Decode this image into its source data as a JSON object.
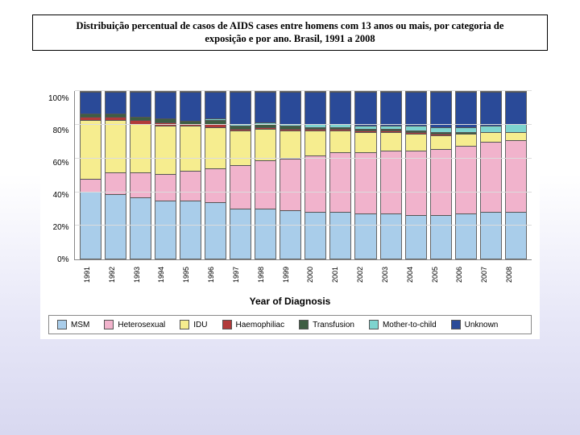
{
  "title": {
    "line1": "Distribuição percentual de casos de AIDS cases entre homens com 13 anos ou mais, por categoria de",
    "line2": "exposição e por ano. Brasil, 1991 a 2008"
  },
  "chart": {
    "type": "stacked-bar-100",
    "xlabel": "Year of Diagnosis",
    "ylabel_ticks": [
      "0%",
      "20%",
      "40%",
      "60%",
      "80%",
      "100%"
    ],
    "ylim": [
      0,
      100
    ],
    "grid_color": "#dcdcdc",
    "border_color": "#888888",
    "background": "#ffffff",
    "series": [
      {
        "key": "msm",
        "label": "MSM",
        "color": "#a9cdea"
      },
      {
        "key": "hetero",
        "label": "Heterosexual",
        "color": "#f1b3cc"
      },
      {
        "key": "idu",
        "label": "IDU",
        "color": "#f6ed8f"
      },
      {
        "key": "haemo",
        "label": "Haemophiliac",
        "color": "#b13a3a"
      },
      {
        "key": "transfusion",
        "label": "Transfusion",
        "color": "#3e5e43"
      },
      {
        "key": "mtc",
        "label": "Mother-to-child",
        "color": "#7ed4cf"
      },
      {
        "key": "unknown",
        "label": "Unknown",
        "color": "#2a4a98"
      }
    ],
    "years": [
      "1991",
      "1992",
      "1993",
      "1994",
      "1995",
      "1996",
      "1997",
      "1998",
      "1999",
      "2000",
      "2001",
      "2002",
      "2003",
      "2004",
      "2005",
      "2006",
      "2007",
      "2008"
    ],
    "data": {
      "1991": {
        "msm": 40,
        "hetero": 8,
        "idu": 35,
        "haemo": 2,
        "transfusion": 2,
        "mtc": 0,
        "unknown": 13
      },
      "1992": {
        "msm": 39,
        "hetero": 13,
        "idu": 31,
        "haemo": 2,
        "transfusion": 2,
        "mtc": 0,
        "unknown": 13
      },
      "1993": {
        "msm": 37,
        "hetero": 15,
        "idu": 29,
        "haemo": 2,
        "transfusion": 2,
        "mtc": 0,
        "unknown": 15
      },
      "1994": {
        "msm": 35,
        "hetero": 16,
        "idu": 29,
        "haemo": 2,
        "transfusion": 2,
        "mtc": 0,
        "unknown": 16
      },
      "1995": {
        "msm": 35,
        "hetero": 18,
        "idu": 27,
        "haemo": 1,
        "transfusion": 2,
        "mtc": 0,
        "unknown": 17
      },
      "1996": {
        "msm": 34,
        "hetero": 20,
        "idu": 25,
        "haemo": 2,
        "transfusion": 2,
        "mtc": 1,
        "unknown": 16
      },
      "1997": {
        "msm": 30,
        "hetero": 26,
        "idu": 21,
        "haemo": 1,
        "transfusion": 2,
        "mtc": 1,
        "unknown": 19
      },
      "1998": {
        "msm": 30,
        "hetero": 29,
        "idu": 19,
        "haemo": 1,
        "transfusion": 2,
        "mtc": 1,
        "unknown": 18
      },
      "1999": {
        "msm": 29,
        "hetero": 31,
        "idu": 17,
        "haemo": 1,
        "transfusion": 2,
        "mtc": 1,
        "unknown": 19
      },
      "2000": {
        "msm": 28,
        "hetero": 34,
        "idu": 15,
        "haemo": 1,
        "transfusion": 1,
        "mtc": 2,
        "unknown": 19
      },
      "2001": {
        "msm": 28,
        "hetero": 36,
        "idu": 13,
        "haemo": 1,
        "transfusion": 1,
        "mtc": 2,
        "unknown": 19
      },
      "2002": {
        "msm": 27,
        "hetero": 37,
        "idu": 12,
        "haemo": 1,
        "transfusion": 1,
        "mtc": 2,
        "unknown": 20
      },
      "2003": {
        "msm": 27,
        "hetero": 38,
        "idu": 11,
        "haemo": 1,
        "transfusion": 1,
        "mtc": 2,
        "unknown": 20
      },
      "2004": {
        "msm": 26,
        "hetero": 39,
        "idu": 10,
        "haemo": 1,
        "transfusion": 1,
        "mtc": 3,
        "unknown": 20
      },
      "2005": {
        "msm": 26,
        "hetero": 40,
        "idu": 8,
        "haemo": 1,
        "transfusion": 1,
        "mtc": 3,
        "unknown": 21
      },
      "2006": {
        "msm": 27,
        "hetero": 41,
        "idu": 7,
        "haemo": 0,
        "transfusion": 1,
        "mtc": 3,
        "unknown": 21
      },
      "2007": {
        "msm": 28,
        "hetero": 42,
        "idu": 6,
        "haemo": 0,
        "transfusion": 0,
        "mtc": 4,
        "unknown": 20
      },
      "2008": {
        "msm": 28,
        "hetero": 43,
        "idu": 5,
        "haemo": 0,
        "transfusion": 0,
        "mtc": 5,
        "unknown": 19
      }
    }
  }
}
